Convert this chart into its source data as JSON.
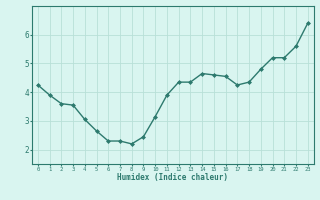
{
  "x": [
    0,
    1,
    2,
    3,
    4,
    5,
    6,
    7,
    8,
    9,
    10,
    11,
    12,
    13,
    14,
    15,
    16,
    17,
    18,
    19,
    20,
    21,
    22,
    23
  ],
  "y": [
    4.25,
    3.9,
    3.6,
    3.55,
    3.05,
    2.65,
    2.3,
    2.3,
    2.2,
    2.45,
    3.15,
    3.9,
    4.35,
    4.35,
    4.65,
    4.6,
    4.55,
    4.25,
    4.35,
    4.8,
    5.2,
    5.2,
    5.6,
    6.4
  ],
  "xlabel": "Humidex (Indice chaleur)",
  "line_color": "#2d7a6e",
  "bg_color": "#d9f5f0",
  "grid_color": "#b8e0d8",
  "axis_color": "#2d7a6e",
  "tick_color": "#2d7a6e",
  "xlabel_color": "#2d7a6e",
  "ylim": [
    1.5,
    7.0
  ],
  "xlim": [
    -0.5,
    23.5
  ],
  "yticks": [
    2,
    3,
    4,
    5,
    6
  ],
  "xticks": [
    0,
    1,
    2,
    3,
    4,
    5,
    6,
    7,
    8,
    9,
    10,
    11,
    12,
    13,
    14,
    15,
    16,
    17,
    18,
    19,
    20,
    21,
    22,
    23
  ]
}
